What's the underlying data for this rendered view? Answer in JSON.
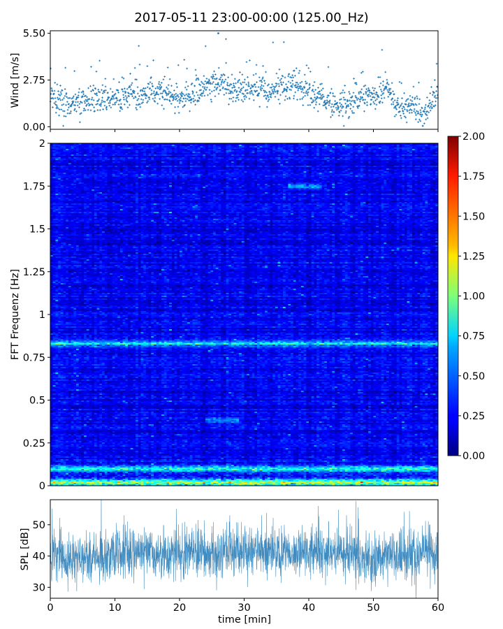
{
  "title": "2017-05-11 23:00-00:00 (125.00_Hz)",
  "chart_data": [
    {
      "type": "scatter",
      "panel": "wind",
      "ylabel": "Wind [m/s]",
      "xlim": [
        0,
        60
      ],
      "ylim": [
        -0.15,
        5.65
      ],
      "yticks": [
        0.0,
        2.75,
        5.5
      ],
      "ytick_labels": [
        "0.00",
        "2.75",
        "5.50"
      ],
      "color": "#1f77b4",
      "trend": {
        "x": [
          0,
          2,
          4,
          6,
          8,
          10,
          12,
          14,
          16,
          18,
          20,
          22,
          24,
          26,
          28,
          30,
          32,
          34,
          36,
          38,
          40,
          42,
          44,
          46,
          48,
          50,
          52,
          54,
          56,
          58,
          60
        ],
        "y": [
          1.9,
          1.3,
          1.5,
          1.6,
          1.7,
          1.6,
          2.0,
          1.8,
          2.0,
          2.1,
          1.7,
          1.9,
          2.2,
          2.6,
          2.3,
          2.1,
          2.3,
          2.2,
          2.4,
          2.4,
          2.1,
          1.7,
          1.4,
          1.3,
          1.7,
          1.8,
          2.3,
          1.0,
          1.2,
          0.7,
          1.9
        ]
      },
      "peak": {
        "x": 26,
        "y": 5.5
      }
    },
    {
      "type": "heatmap",
      "panel": "spectrogram",
      "ylabel": "FFT Frequenz [Hz]",
      "xlim": [
        0,
        60
      ],
      "ylim": [
        0,
        2
      ],
      "yticks": [
        0,
        0.25,
        0.5,
        0.75,
        1,
        1.25,
        1.5,
        1.75,
        2
      ],
      "ytick_labels": [
        "0",
        "0.25",
        "0.5",
        "0.75",
        "1",
        "1.25",
        "1.5",
        "1.75",
        "2"
      ],
      "colormap": "jet",
      "colorbar": {
        "range": [
          0,
          2
        ],
        "ticks": [
          0.0,
          0.25,
          0.5,
          0.75,
          1.0,
          1.25,
          1.5,
          1.75,
          2.0
        ],
        "tick_labels": [
          "0.00",
          "0.25",
          "0.50",
          "0.75",
          "1.00",
          "1.25",
          "1.50",
          "1.75",
          "2.00"
        ]
      },
      "background_level": 0.22,
      "features": [
        {
          "freq": 0.83,
          "x_from": 0,
          "x_to": 60,
          "level": 0.75
        },
        {
          "freq": 0.1,
          "x_from": 0,
          "x_to": 60,
          "level": 0.8
        },
        {
          "freq": 0.02,
          "x_from": 0,
          "x_to": 60,
          "level": 1.0
        },
        {
          "freq": 1.75,
          "x_from": 37,
          "x_to": 42,
          "level": 0.6
        },
        {
          "freq": 0.38,
          "x_from": 24,
          "x_to": 29,
          "level": 0.55
        }
      ]
    },
    {
      "type": "line",
      "panel": "spl",
      "ylabel": "SPL [dB]",
      "xlabel": "time [min]",
      "xlim": [
        0,
        60
      ],
      "ylim": [
        26.5,
        58
      ],
      "xticks": [
        0,
        10,
        20,
        30,
        40,
        50,
        60
      ],
      "xtick_labels": [
        "0",
        "10",
        "20",
        "30",
        "40",
        "50",
        "60"
      ],
      "yticks": [
        30,
        40,
        50
      ],
      "ytick_labels": [
        "30",
        "40",
        "50"
      ],
      "color": "#1f77b4",
      "trend": {
        "x": [
          0,
          5,
          10,
          15,
          20,
          25,
          30,
          35,
          40,
          45,
          50,
          55,
          60
        ],
        "y": [
          40,
          39,
          40,
          41,
          40,
          41,
          42,
          41,
          42,
          41,
          40,
          40,
          41
        ]
      },
      "spread_db": 4
    }
  ]
}
